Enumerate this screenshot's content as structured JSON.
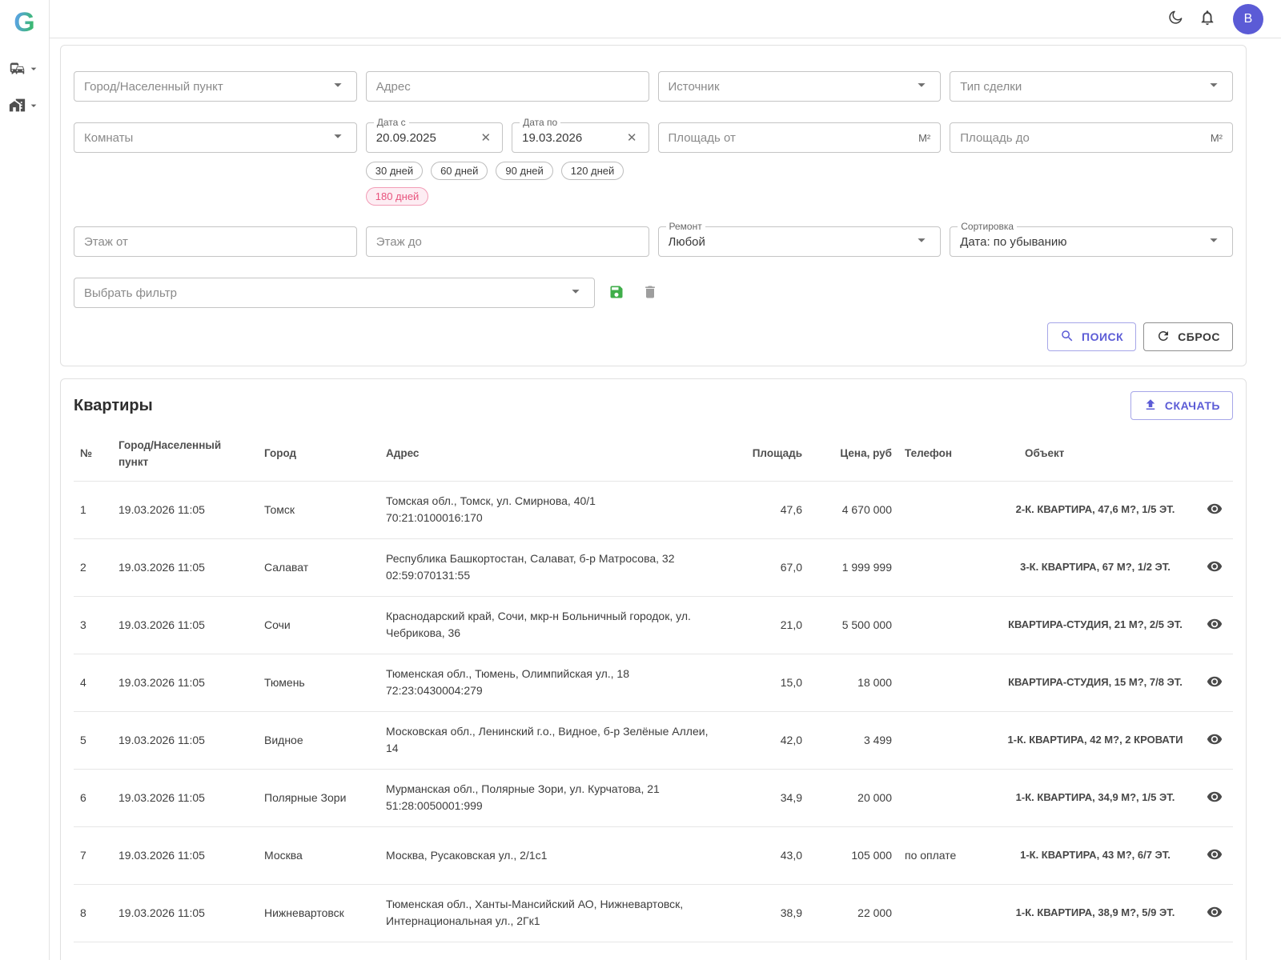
{
  "colors": {
    "accent": "#5c5cd6",
    "avatar_bg": "#5b5bd6",
    "chip_active": "#e8537d",
    "save_green": "#3fae4a"
  },
  "sidebar": {
    "logo": "G",
    "items": [
      {
        "icon": "commute-icon"
      },
      {
        "icon": "buildings-icon"
      }
    ]
  },
  "header": {
    "icons": [
      "moon-icon",
      "bell-icon"
    ],
    "avatar_initial": "B"
  },
  "filters": {
    "city": {
      "placeholder": "Город/Населенный пункт"
    },
    "address": {
      "placeholder": "Адрес"
    },
    "source": {
      "placeholder": "Источник"
    },
    "deal_type": {
      "placeholder": "Тип сделки"
    },
    "rooms": {
      "placeholder": "Комнаты"
    },
    "date_from": {
      "label": "Дата с",
      "value": "20.09.2025"
    },
    "date_to": {
      "label": "Дата по",
      "value": "19.03.2026"
    },
    "area_from": {
      "placeholder": "Площадь от",
      "suffix": "М²"
    },
    "area_to": {
      "placeholder": "Площадь до",
      "suffix": "М²"
    },
    "chips": [
      {
        "label": "30 дней",
        "active": false
      },
      {
        "label": "60 дней",
        "active": false
      },
      {
        "label": "90 дней",
        "active": false
      },
      {
        "label": "120 дней",
        "active": false
      },
      {
        "label": "180 дней",
        "active": true
      }
    ],
    "floor_from": {
      "placeholder": "Этаж от"
    },
    "floor_to": {
      "placeholder": "Этаж до"
    },
    "renovation": {
      "label": "Ремонт",
      "value": "Любой"
    },
    "sorting": {
      "label": "Сортировка",
      "value": "Дата: по убыванию"
    },
    "saved_filter": {
      "placeholder": "Выбрать фильтр"
    },
    "search_label": "ПОИСК",
    "reset_label": "СБРОС"
  },
  "table": {
    "title": "Квартиры",
    "download_label": "СКАЧАТЬ",
    "columns": [
      "№",
      "Город/Населенный пункт",
      "Город",
      "Адрес",
      "Площадь",
      "Цена, руб",
      "Телефон",
      "Объект"
    ],
    "rows": [
      {
        "num": "1",
        "datetime": "19.03.2026 11:05",
        "city": "Томск",
        "address": "Томская обл., Томск, ул. Смирнова, 40/1",
        "cadastre": "70:21:0100016:170",
        "area": "47,6",
        "price": "4 670 000",
        "phone": "",
        "object": "2-К. КВАРТИРА, 47,6 М?, 1/5 ЭТ."
      },
      {
        "num": "2",
        "datetime": "19.03.2026 11:05",
        "city": "Салават",
        "address": "Республика Башкортостан, Салават, б-р Матросова, 32",
        "cadastre": "02:59:070131:55",
        "area": "67,0",
        "price": "1 999 999",
        "phone": "",
        "object": "3-К. КВАРТИРА, 67 М?, 1/2 ЭТ."
      },
      {
        "num": "3",
        "datetime": "19.03.2026 11:05",
        "city": "Сочи",
        "address": "Краснодарский край, Сочи, мкр-н Больничный городок, ул. Чебрикова, 36",
        "cadastre": "",
        "area": "21,0",
        "price": "5 500 000",
        "phone": "",
        "object": "КВАРТИРА-СТУДИЯ, 21 М?, 2/5 ЭТ."
      },
      {
        "num": "4",
        "datetime": "19.03.2026 11:05",
        "city": "Тюмень",
        "address": "Тюменская обл., Тюмень, Олимпийская ул., 18",
        "cadastre": "72:23:0430004:279",
        "area": "15,0",
        "price": "18 000",
        "phone": "",
        "object": "КВАРТИРА-СТУДИЯ, 15 М?, 7/8 ЭТ."
      },
      {
        "num": "5",
        "datetime": "19.03.2026 11:05",
        "city": "Видное",
        "address": "Московская обл., Ленинский г.о., Видное, б-р Зелёные Аллеи, 14",
        "cadastre": "",
        "area": "42,0",
        "price": "3 499",
        "phone": "",
        "object": "1-К. КВАРТИРА, 42 М?, 2 КРОВАТИ"
      },
      {
        "num": "6",
        "datetime": "19.03.2026 11:05",
        "city": "Полярные Зори",
        "address": "Мурманская обл., Полярные Зори, ул. Курчатова, 21",
        "cadastre": "51:28:0050001:999",
        "area": "34,9",
        "price": "20 000",
        "phone": "",
        "object": "1-К. КВАРТИРА, 34,9 М?, 1/5 ЭТ."
      },
      {
        "num": "7",
        "datetime": "19.03.2026 11:05",
        "city": "Москва",
        "address": "Москва, Русаковская ул., 2/1с1",
        "cadastre": "",
        "area": "43,0",
        "price": "105 000",
        "phone": "по оплате",
        "object": "1-К. КВАРТИРА, 43 М?, 6/7 ЭТ."
      },
      {
        "num": "8",
        "datetime": "19.03.2026 11:05",
        "city": "Нижневартовск",
        "address": "Тюменская обл., Ханты-Мансийский АО, Нижневартовск, Интернациональная ул., 2Гк1",
        "cadastre": "",
        "area": "38,9",
        "price": "22 000",
        "phone": "",
        "object": "1-К. КВАРТИРА, 38,9 М?, 5/9 ЭТ."
      }
    ]
  }
}
